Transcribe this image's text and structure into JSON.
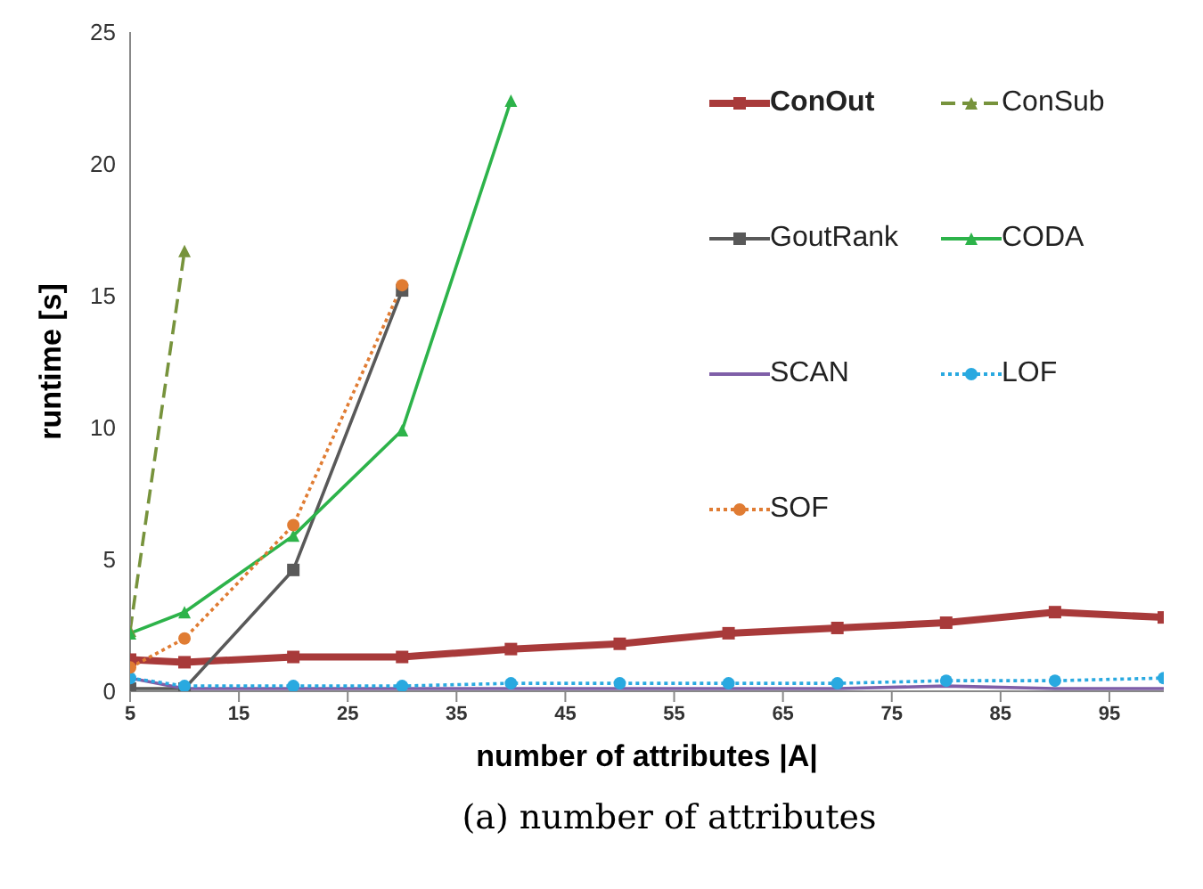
{
  "chart_data": {
    "type": "line",
    "xlabel": "number of attributes |A|",
    "ylabel": "runtime [s]",
    "x": [
      5,
      10,
      20,
      30,
      40,
      50,
      60,
      70,
      80,
      90,
      100
    ],
    "xlim": [
      5,
      100
    ],
    "xticks": [
      5,
      15,
      25,
      35,
      45,
      55,
      65,
      75,
      85,
      95
    ],
    "ylim": [
      0,
      25
    ],
    "yticks": [
      0,
      5,
      10,
      15,
      20,
      25
    ],
    "grid": false,
    "legend": "top right",
    "annotations": [
      "(a) number of attributes"
    ],
    "series": [
      {
        "name": "ConOut",
        "color": "#a83a3a",
        "marker": "square",
        "line_style": "solid",
        "values": [
          1.2,
          1.1,
          1.3,
          1.3,
          1.6,
          1.8,
          2.2,
          2.4,
          2.6,
          3.0,
          2.8
        ]
      },
      {
        "name": "ConSub",
        "color": "#77933c",
        "marker": "triangle",
        "line_style": "dashed",
        "values": [
          2.3,
          16.7,
          null,
          null,
          null,
          null,
          null,
          null,
          null,
          null,
          null
        ]
      },
      {
        "name": "GoutRank",
        "color": "#595959",
        "marker": "square",
        "line_style": "solid",
        "values": [
          0.1,
          0.1,
          4.6,
          15.2,
          null,
          null,
          null,
          null,
          null,
          null,
          null
        ]
      },
      {
        "name": "CODA",
        "color": "#2db34a",
        "marker": "triangle",
        "line_style": "solid",
        "values": [
          2.2,
          3.0,
          5.9,
          9.9,
          22.4,
          null,
          null,
          null,
          null,
          null,
          null
        ]
      },
      {
        "name": "SCAN",
        "color": "#7f5fa8",
        "marker": "none",
        "line_style": "solid",
        "values": [
          0.5,
          0.1,
          0.1,
          0.1,
          0.1,
          0.1,
          0.1,
          0.1,
          0.2,
          0.1,
          0.1
        ]
      },
      {
        "name": "LOF",
        "color": "#29a9e0",
        "marker": "circle",
        "line_style": "dotted",
        "values": [
          0.5,
          0.2,
          0.2,
          0.2,
          0.3,
          0.3,
          0.3,
          0.3,
          0.4,
          0.4,
          0.5
        ]
      },
      {
        "name": "SOF",
        "color": "#e07c33",
        "marker": "circle",
        "line_style": "dotted",
        "values": [
          0.9,
          2.0,
          6.3,
          15.4,
          null,
          null,
          null,
          null,
          null,
          null,
          null
        ]
      }
    ]
  }
}
